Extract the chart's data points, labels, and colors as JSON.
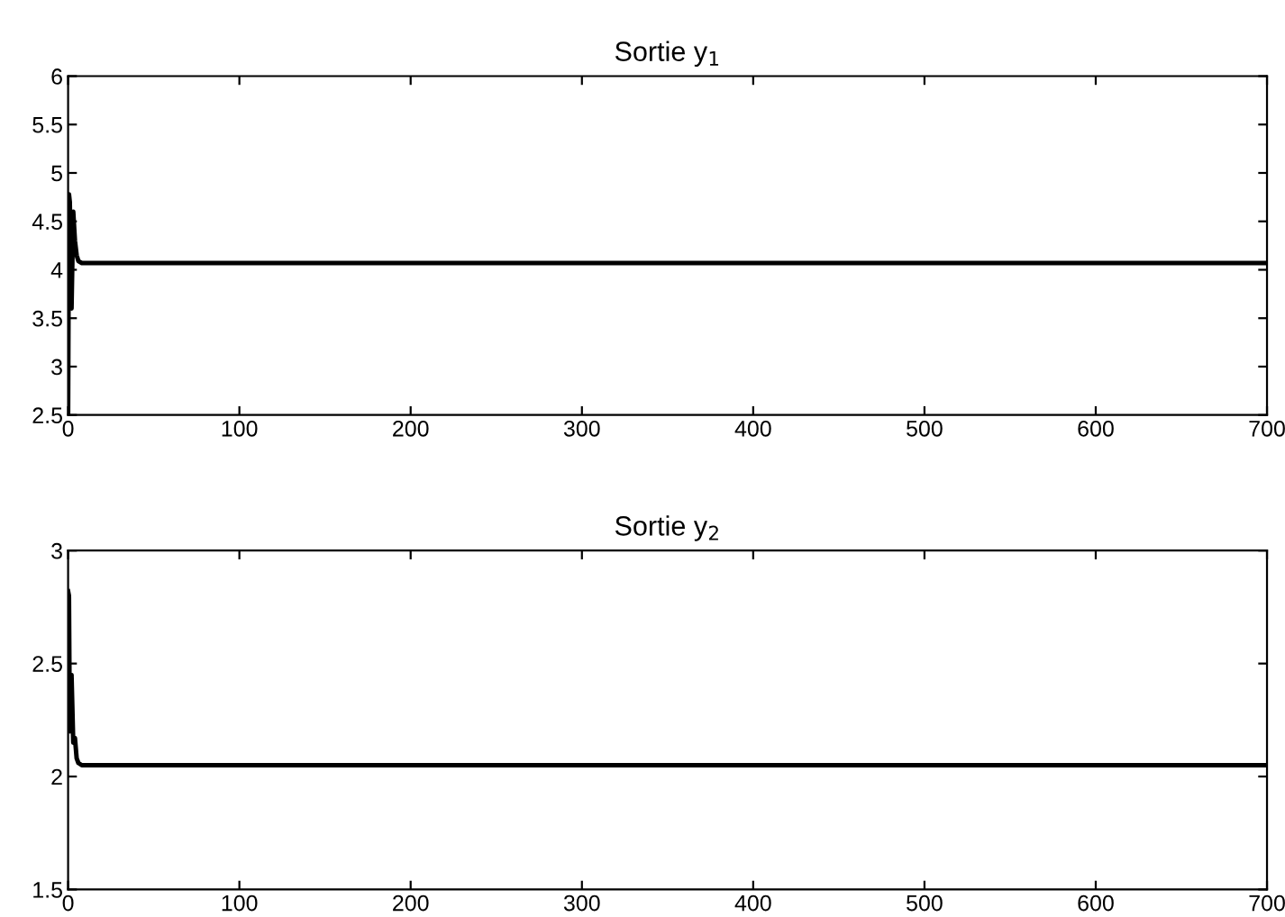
{
  "chart_data": [
    {
      "type": "line",
      "title": "Sortie y$_{1}$",
      "x": [
        0,
        0.5,
        1,
        2,
        3,
        4,
        5,
        6,
        8,
        10,
        20,
        100,
        300,
        500,
        700
      ],
      "values": [
        2.5,
        4.78,
        4.7,
        3.6,
        4.6,
        4.3,
        4.15,
        4.09,
        4.07,
        4.07,
        4.07,
        4.07,
        4.07,
        4.07,
        4.07
      ],
      "color": "#000000",
      "xlim": [
        0,
        700
      ],
      "ylim": [
        2.5,
        6
      ],
      "xticks": [
        0,
        100,
        200,
        300,
        400,
        500,
        600,
        700
      ],
      "yticks": [
        2.5,
        3,
        3.5,
        4,
        4.5,
        5,
        5.5,
        6
      ],
      "grid": false,
      "legend": false
    },
    {
      "type": "line",
      "title": "Sortie y$_{2}$",
      "x": [
        0,
        0.5,
        1,
        2,
        3,
        4,
        5,
        6,
        8,
        10,
        20,
        100,
        300,
        500,
        700
      ],
      "values": [
        2.82,
        2.8,
        2.2,
        2.45,
        2.15,
        2.17,
        2.08,
        2.06,
        2.05,
        2.05,
        2.05,
        2.05,
        2.05,
        2.05,
        2.05
      ],
      "color": "#000000",
      "xlim": [
        0,
        700
      ],
      "ylim": [
        1.5,
        3
      ],
      "xticks": [
        0,
        100,
        200,
        300,
        400,
        500,
        600,
        700
      ],
      "yticks": [
        1.5,
        2,
        2.5,
        3
      ],
      "grid": false,
      "legend": false
    }
  ]
}
